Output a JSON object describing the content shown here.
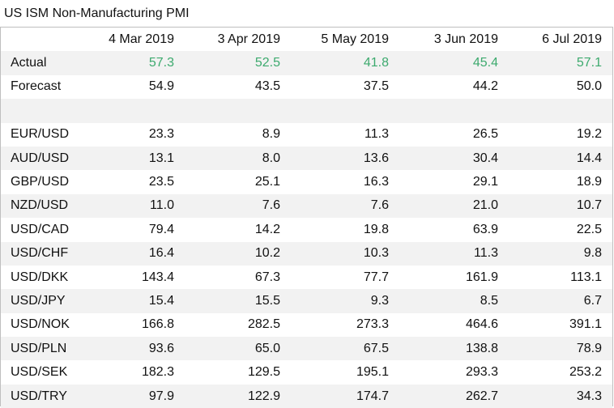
{
  "title": "US ISM Non-Manufacturing PMI",
  "columns": [
    "4 Mar 2019",
    "3 Apr 2019",
    "5 May 2019",
    "3 Jun 2019",
    "6 Jul 2019"
  ],
  "actual": {
    "label": "Actual",
    "values": [
      "57.3",
      "52.5",
      "41.8",
      "45.4",
      "57.1"
    ]
  },
  "forecast": {
    "label": "Forecast",
    "values": [
      "54.9",
      "43.5",
      "37.5",
      "44.2",
      "50.0"
    ]
  },
  "pairs": [
    {
      "label": "EUR/USD",
      "values": [
        "23.3",
        "8.9",
        "11.3",
        "26.5",
        "19.2"
      ]
    },
    {
      "label": "AUD/USD",
      "values": [
        "13.1",
        "8.0",
        "13.6",
        "30.4",
        "14.4"
      ]
    },
    {
      "label": "GBP/USD",
      "values": [
        "23.5",
        "25.1",
        "16.3",
        "29.1",
        "18.9"
      ]
    },
    {
      "label": "NZD/USD",
      "values": [
        "11.0",
        "7.6",
        "7.6",
        "21.0",
        "10.7"
      ]
    },
    {
      "label": "USD/CAD",
      "values": [
        "79.4",
        "14.2",
        "19.8",
        "63.9",
        "22.5"
      ]
    },
    {
      "label": "USD/CHF",
      "values": [
        "16.4",
        "10.2",
        "10.3",
        "11.3",
        "9.8"
      ]
    },
    {
      "label": "USD/DKK",
      "values": [
        "143.4",
        "67.3",
        "77.7",
        "161.9",
        "113.1"
      ]
    },
    {
      "label": "USD/JPY",
      "values": [
        "15.4",
        "15.5",
        "9.3",
        "8.5",
        "6.7"
      ]
    },
    {
      "label": "USD/NOK",
      "values": [
        "166.8",
        "282.5",
        "273.3",
        "464.6",
        "391.1"
      ]
    },
    {
      "label": "USD/PLN",
      "values": [
        "93.6",
        "65.0",
        "67.5",
        "138.8",
        "78.9"
      ]
    },
    {
      "label": "USD/SEK",
      "values": [
        "182.3",
        "129.5",
        "195.1",
        "293.3",
        "253.2"
      ]
    },
    {
      "label": "USD/TRY",
      "values": [
        "97.9",
        "122.9",
        "174.7",
        "262.7",
        "34.3"
      ]
    }
  ],
  "colors": {
    "actual_text": "#3daa6e",
    "shade_row": "#f2f2f2",
    "border": "#bfbfbf"
  }
}
